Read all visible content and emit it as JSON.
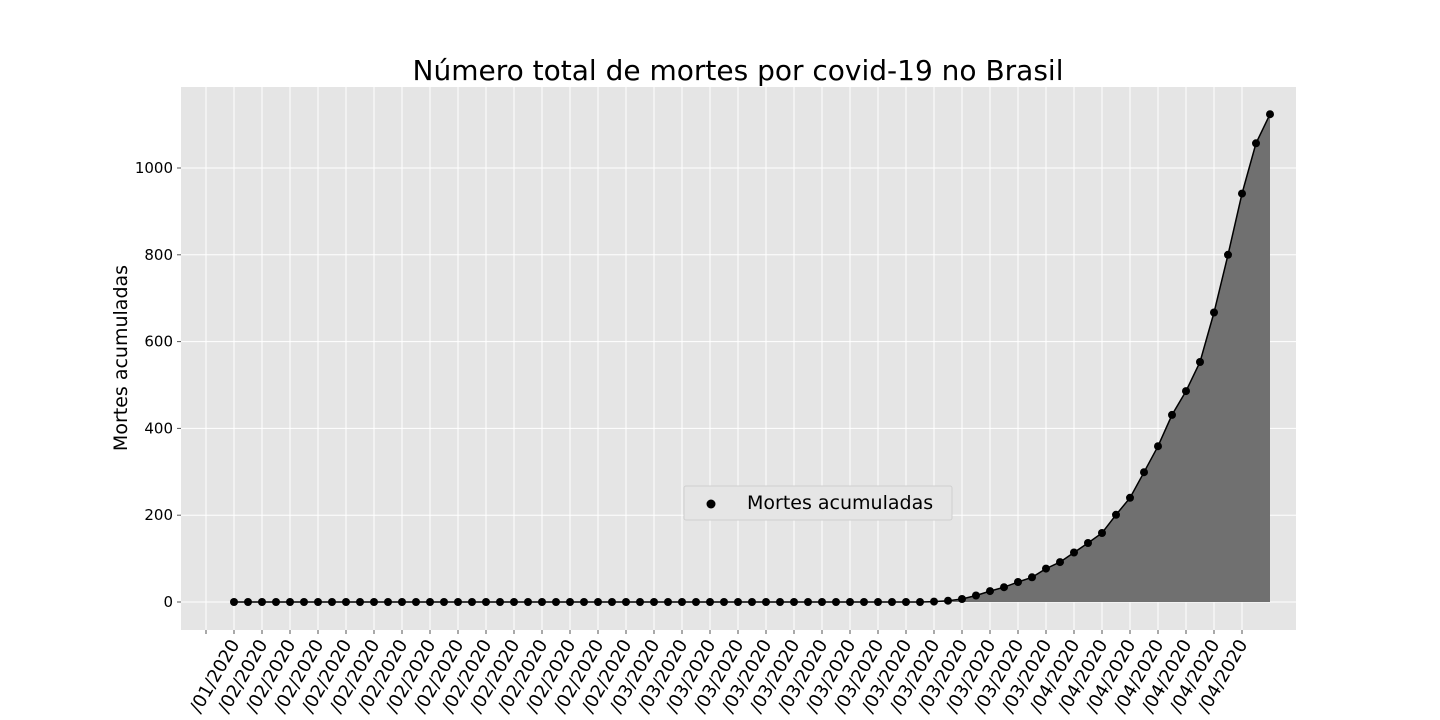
{
  "chart_data": {
    "type": "area",
    "title": "Número total de mortes por covid-19 no Brasil",
    "xlabel": "",
    "ylabel": "Mortes acumuladas",
    "ylim": [
      -60,
      1180
    ],
    "yticks": [
      0,
      200,
      400,
      600,
      800,
      1000
    ],
    "grid": true,
    "legend_position": "center",
    "x_tick_labels": [
      "/01/2020",
      "/02/2020",
      "/02/2020",
      "/02/2020",
      "/02/2020",
      "/02/2020",
      "/02/2020",
      "/02/2020",
      "/02/2020",
      "/02/2020",
      "/02/2020",
      "/02/2020",
      "/02/2020",
      "/02/2020",
      "/02/2020",
      "/03/2020",
      "/03/2020",
      "/03/2020",
      "/03/2020",
      "/03/2020",
      "/03/2020",
      "/03/2020",
      "/03/2020",
      "/03/2020",
      "/03/2020",
      "/03/2020",
      "/03/2020",
      "/03/2020",
      "/03/2020",
      "/03/2020",
      "/04/2020",
      "/04/2020",
      "/04/2020",
      "/04/2020",
      "/04/2020",
      "/04/2020",
      "/04/2020"
    ],
    "series": [
      {
        "name": "Mortes acumuladas",
        "color": "#000000",
        "fill_color": "#707070",
        "values": [
          0,
          0,
          0,
          0,
          0,
          0,
          0,
          0,
          0,
          0,
          0,
          0,
          0,
          0,
          0,
          0,
          0,
          0,
          0,
          0,
          0,
          0,
          0,
          0,
          0,
          0,
          0,
          0,
          0,
          0,
          0,
          0,
          0,
          0,
          0,
          0,
          0,
          0,
          0,
          0,
          0,
          0,
          0,
          0,
          0,
          0,
          0,
          0,
          0,
          0,
          1,
          3,
          7,
          15,
          25,
          34,
          46,
          57,
          77,
          92,
          114,
          136,
          159,
          201,
          240,
          299,
          359,
          431,
          486,
          553,
          667,
          800,
          941,
          1057,
          1124
        ]
      }
    ]
  },
  "legend": {
    "label": "Mortes acumuladas"
  }
}
